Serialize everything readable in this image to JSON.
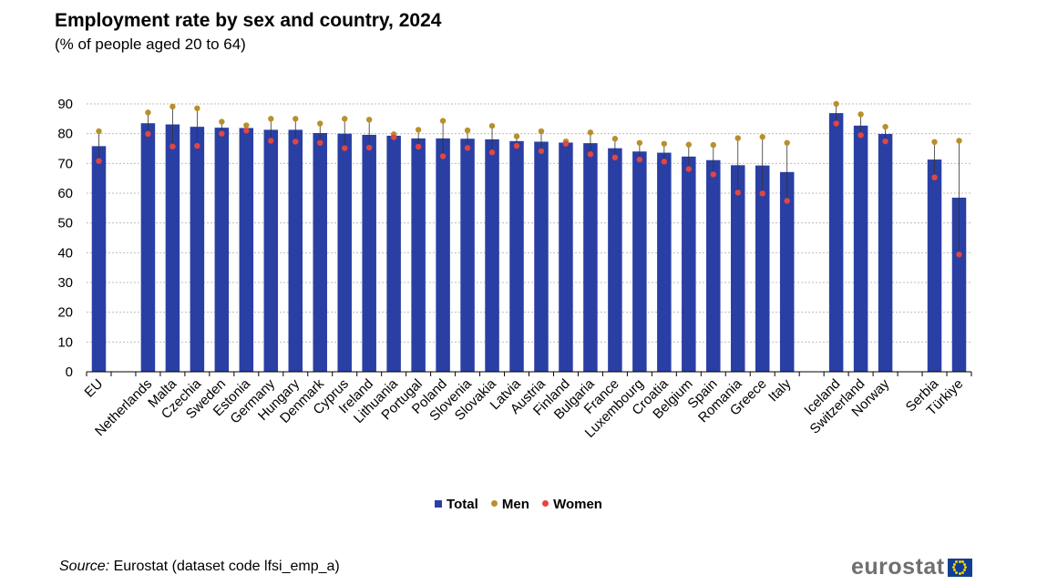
{
  "title": "Employment rate by sex and country, 2024",
  "subtitle": "(% of people aged 20 to 64)",
  "source_label": "Source:",
  "source_text": "Eurostat (dataset code lfsi_emp_a)",
  "logo_text": "eurostat",
  "logo_icon": "eu-flag-icon",
  "legend": [
    {
      "label": "Total",
      "color": "#2a3fa4",
      "shape": "square"
    },
    {
      "label": "Men",
      "color": "#b8902a",
      "shape": "circle"
    },
    {
      "label": "Women",
      "color": "#e3463f",
      "shape": "circle"
    }
  ],
  "chart_data": {
    "type": "bar",
    "title": "Employment rate by sex and country, 2024",
    "subtitle": "(% of people aged 20 to 64)",
    "ylim": [
      0,
      90
    ],
    "yticks": [
      0,
      10,
      20,
      30,
      40,
      50,
      60,
      70,
      80,
      90
    ],
    "grid": true,
    "legend_position": "bottom",
    "categories": [
      "EU",
      "",
      "Netherlands",
      "Malta",
      "Czechia",
      "Sweden",
      "Estonia",
      "Germany",
      "Hungary",
      "Denmark",
      "Cyprus",
      "Ireland",
      "Lithuania",
      "Portugal",
      "Poland",
      "Slovenia",
      "Slovakia",
      "Latvia",
      "Austria",
      "Finland",
      "Bulgaria",
      "France",
      "Luxembourg",
      "Croatia",
      "Belgium",
      "Spain",
      "Romania",
      "Greece",
      "Italy",
      "",
      "Iceland",
      "Switzerland",
      "Norway",
      "",
      "Serbia",
      "Türkiye"
    ],
    "series": [
      {
        "name": "Total",
        "type": "bar",
        "color": "#2a3fa4",
        "values": [
          75.8,
          null,
          83.5,
          83.1,
          82.3,
          82.0,
          81.9,
          81.3,
          81.3,
          80.2,
          80.0,
          79.6,
          79.3,
          78.4,
          78.4,
          78.3,
          78.1,
          77.5,
          77.3,
          77.0,
          76.8,
          75.1,
          74.0,
          73.6,
          72.3,
          71.1,
          69.4,
          69.3,
          67.1,
          null,
          86.9,
          82.7,
          79.9,
          null,
          71.3,
          58.5
        ]
      },
      {
        "name": "Men",
        "type": "point",
        "color": "#b8902a",
        "values": [
          80.8,
          null,
          87.1,
          89.1,
          88.5,
          84.0,
          82.8,
          85.0,
          85.0,
          83.4,
          85.0,
          84.7,
          79.8,
          81.3,
          84.3,
          81.1,
          82.6,
          79.1,
          80.8,
          77.4,
          80.4,
          78.3,
          76.9,
          76.6,
          76.3,
          76.2,
          78.5,
          78.9,
          76.9,
          null,
          90.0,
          86.5,
          82.3,
          null,
          77.2,
          77.6
        ]
      },
      {
        "name": "Women",
        "type": "point",
        "color": "#e3463f",
        "values": [
          70.8,
          null,
          79.9,
          75.7,
          75.9,
          80.0,
          81.0,
          77.6,
          77.3,
          76.9,
          75.1,
          75.3,
          78.8,
          75.6,
          72.4,
          75.2,
          73.7,
          75.9,
          74.1,
          76.6,
          73.1,
          72.0,
          71.3,
          70.6,
          68.1,
          66.3,
          60.2,
          59.9,
          57.4,
          null,
          83.4,
          79.5,
          77.4,
          null,
          65.3,
          39.4
        ]
      }
    ]
  }
}
